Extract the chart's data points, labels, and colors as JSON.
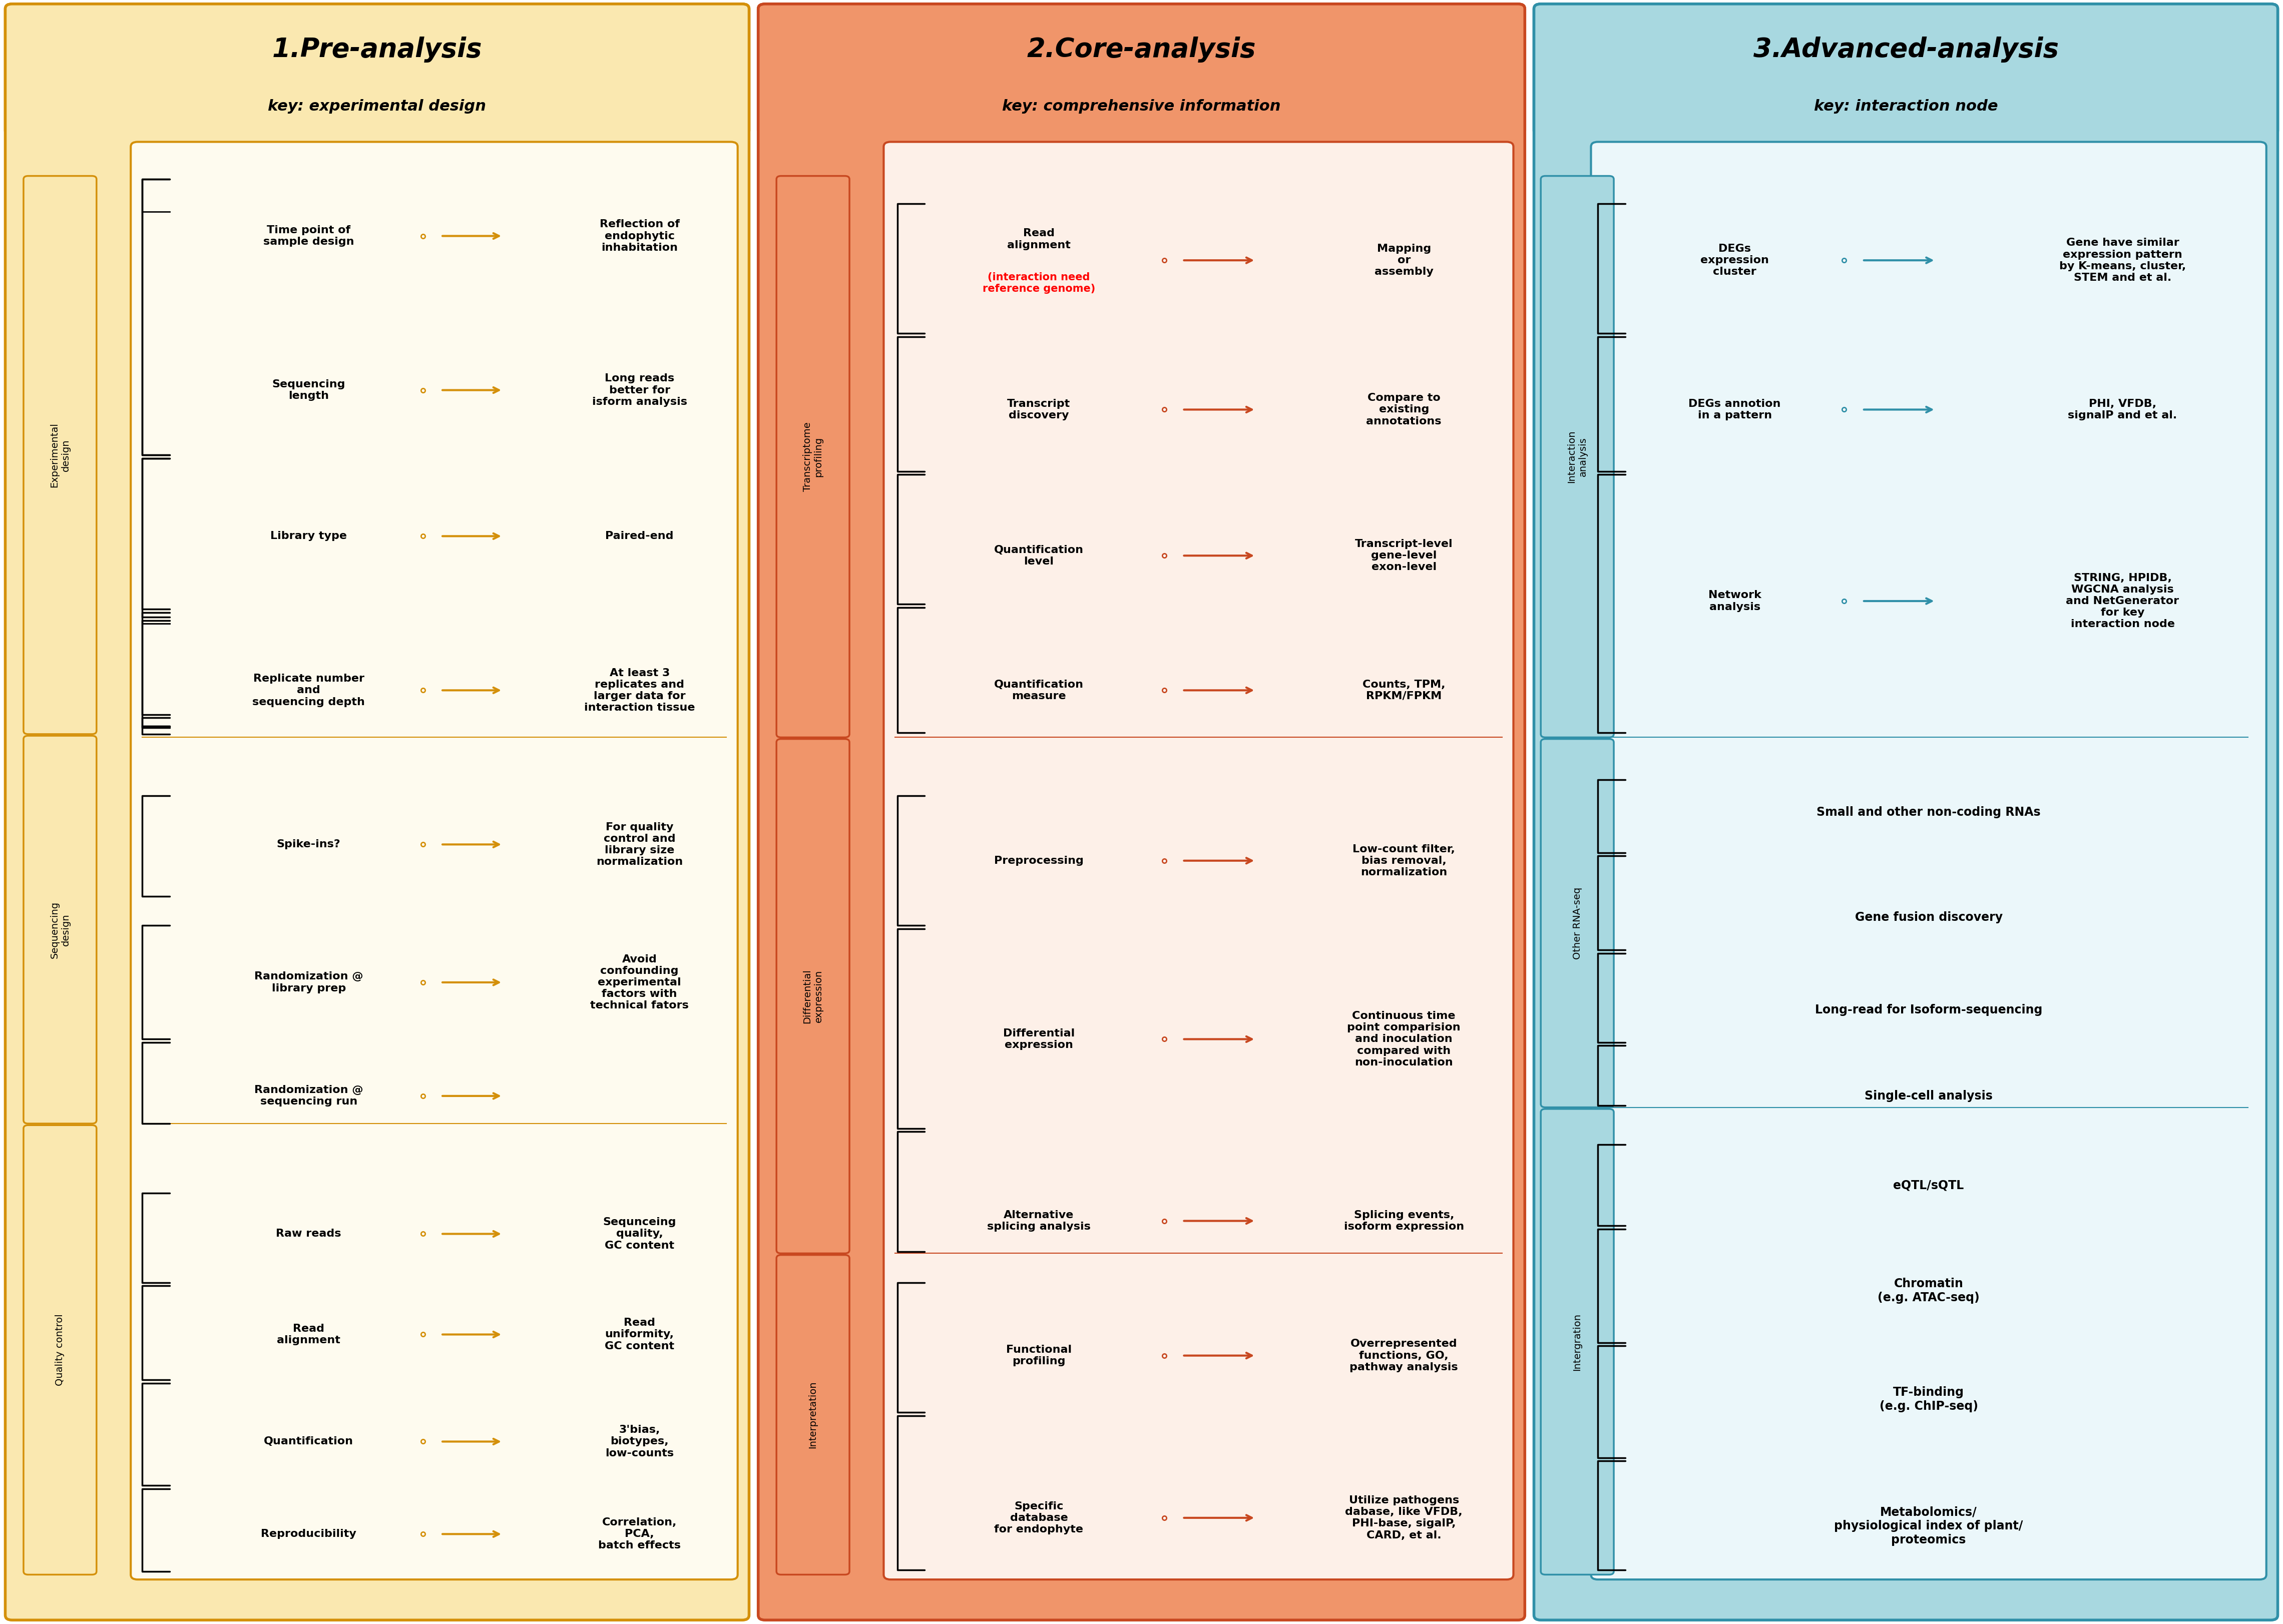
{
  "fig_width": 45.61,
  "fig_height": 32.45,
  "bg_color": "#FFFFFF",
  "col1_bg": "#FAE8B0",
  "col2_bg": "#F0956A",
  "col3_bg": "#A8D8E0",
  "col1_border": "#D4900A",
  "col2_border": "#C84820",
  "col3_border": "#3090A8",
  "col1_title": "1.Pre-analysis",
  "col1_subtitle": "key: experimental design",
  "col2_title": "2.Core-analysis",
  "col2_subtitle": "key: comprehensive information",
  "col3_title": "3.Advanced-analysis",
  "col3_subtitle": "key: interaction node",
  "inner_bg1": "#FEFBEF",
  "inner_bg2": "#FDF0E8",
  "inner_bg3": "#EBF7FA"
}
